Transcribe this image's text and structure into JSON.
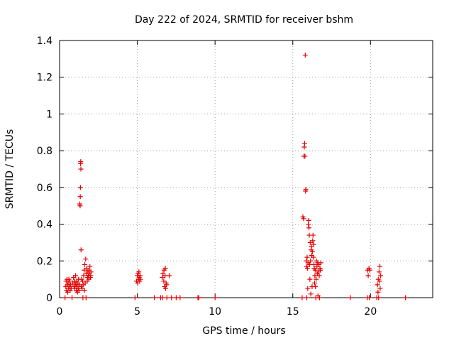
{
  "chart_data": {
    "type": "scatter",
    "title": "Day 222 of 2024, SRMTID for receiver bshm",
    "xlabel": "GPS time / hours",
    "ylabel": "SRMTID / TECUs",
    "xlim": [
      0,
      24
    ],
    "ylim": [
      0,
      1.4
    ],
    "x_ticks": [
      0,
      5,
      10,
      15,
      20
    ],
    "x_tick_labels": [
      "0",
      "5",
      "10",
      "15",
      "20"
    ],
    "y_ticks": [
      0,
      0.2,
      0.4,
      0.6,
      0.8,
      1.0,
      1.2,
      1.4
    ],
    "y_tick_labels": [
      "0",
      "0.2",
      "0.4",
      "0.6",
      "0.8",
      "1",
      "1.2",
      "1.4"
    ],
    "grid": true,
    "marker": "plus",
    "marker_color": "#e60000",
    "series": [
      {
        "name": "SRMTID",
        "points": [
          [
            0.35,
            0.0
          ],
          [
            0.4,
            0.06
          ],
          [
            0.42,
            0.09
          ],
          [
            0.45,
            0.04
          ],
          [
            0.48,
            0.1
          ],
          [
            0.5,
            0.07
          ],
          [
            0.52,
            0.03
          ],
          [
            0.55,
            0.08
          ],
          [
            0.58,
            0.05
          ],
          [
            0.6,
            0.1
          ],
          [
            0.62,
            0.06
          ],
          [
            0.65,
            0.09
          ],
          [
            0.68,
            0.04
          ],
          [
            0.7,
            0.07
          ],
          [
            0.75,
            0.05
          ],
          [
            0.8,
            0.0
          ],
          [
            0.85,
            0.08
          ],
          [
            0.9,
            0.11
          ],
          [
            0.93,
            0.06
          ],
          [
            0.95,
            0.09
          ],
          [
            0.98,
            0.05
          ],
          [
            1.0,
            0.08
          ],
          [
            1.03,
            0.12
          ],
          [
            1.05,
            0.07
          ],
          [
            1.08,
            0.04
          ],
          [
            1.1,
            0.09
          ],
          [
            1.12,
            0.06
          ],
          [
            1.15,
            0.03
          ],
          [
            1.18,
            0.08
          ],
          [
            1.2,
            0.05
          ],
          [
            1.22,
            0.1
          ],
          [
            1.25,
            0.04
          ],
          [
            1.28,
            0.07
          ],
          [
            1.3,
            0.51
          ],
          [
            1.32,
            0.5
          ],
          [
            1.33,
            0.55
          ],
          [
            1.34,
            0.6
          ],
          [
            1.35,
            0.73
          ],
          [
            1.36,
            0.74
          ],
          [
            1.37,
            0.7
          ],
          [
            1.38,
            0.26
          ],
          [
            1.4,
            0.06
          ],
          [
            1.42,
            0.1
          ],
          [
            1.45,
            0.05
          ],
          [
            1.48,
            0.09
          ],
          [
            1.5,
            0.0
          ],
          [
            1.52,
            0.07
          ],
          [
            1.55,
            0.12
          ],
          [
            1.58,
            0.15
          ],
          [
            1.6,
            0.04
          ],
          [
            1.62,
            0.18
          ],
          [
            1.65,
            0.08
          ],
          [
            1.68,
            0.21
          ],
          [
            1.7,
            0.0
          ],
          [
            1.72,
            0.13
          ],
          [
            1.75,
            0.16
          ],
          [
            1.78,
            0.09
          ],
          [
            1.8,
            0.11
          ],
          [
            1.82,
            0.14
          ],
          [
            1.85,
            0.12
          ],
          [
            1.88,
            0.1
          ],
          [
            1.9,
            0.15
          ],
          [
            1.92,
            0.13
          ],
          [
            1.95,
            0.17
          ],
          [
            1.98,
            0.11
          ],
          [
            2.0,
            0.12
          ],
          [
            2.02,
            0.14
          ],
          [
            4.85,
            0.0
          ],
          [
            4.95,
            0.09
          ],
          [
            5.0,
            0.12
          ],
          [
            5.02,
            0.08
          ],
          [
            5.05,
            0.13
          ],
          [
            5.08,
            0.1
          ],
          [
            5.1,
            0.14
          ],
          [
            5.12,
            0.11
          ],
          [
            5.15,
            0.09
          ],
          [
            5.18,
            0.12
          ],
          [
            5.2,
            0.1
          ],
          [
            6.1,
            0.0
          ],
          [
            6.5,
            0.0
          ],
          [
            6.6,
            0.11
          ],
          [
            6.62,
            0.0
          ],
          [
            6.65,
            0.13
          ],
          [
            6.7,
            0.09
          ],
          [
            6.72,
            0.15
          ],
          [
            6.75,
            0.06
          ],
          [
            6.78,
            0.12
          ],
          [
            6.8,
            0.16
          ],
          [
            6.82,
            0.05
          ],
          [
            6.85,
            0.08
          ],
          [
            6.88,
            0.07
          ],
          [
            6.9,
            0.0
          ],
          [
            7.05,
            0.12
          ],
          [
            7.2,
            0.0
          ],
          [
            7.5,
            0.0
          ],
          [
            7.75,
            0.0
          ],
          [
            8.9,
            0.0
          ],
          [
            8.95,
            0.0
          ],
          [
            10.0,
            0.0
          ],
          [
            15.6,
            0.0
          ],
          [
            15.65,
            0.44
          ],
          [
            15.7,
            0.43
          ],
          [
            15.72,
            0.77
          ],
          [
            15.74,
            0.82
          ],
          [
            15.76,
            0.84
          ],
          [
            15.78,
            0.77
          ],
          [
            15.8,
            1.32
          ],
          [
            15.82,
            0.58
          ],
          [
            15.84,
            0.59
          ],
          [
            15.86,
            0.2
          ],
          [
            15.88,
            0.17
          ],
          [
            15.9,
            0.0
          ],
          [
            15.92,
            0.22
          ],
          [
            15.94,
            0.16
          ],
          [
            15.96,
            0.05
          ],
          [
            15.98,
            0.19
          ],
          [
            16.0,
            0.4
          ],
          [
            16.02,
            0.42
          ],
          [
            16.04,
            0.38
          ],
          [
            16.06,
            0.34
          ],
          [
            16.08,
            0.18
          ],
          [
            16.1,
            0.1
          ],
          [
            16.12,
            0.3
          ],
          [
            16.14,
            0.2
          ],
          [
            16.16,
            0.02
          ],
          [
            16.18,
            0.26
          ],
          [
            16.2,
            0.28
          ],
          [
            16.22,
            0.23
          ],
          [
            16.24,
            0.06
          ],
          [
            16.26,
            0.25
          ],
          [
            16.28,
            0.31
          ],
          [
            16.3,
            0.34
          ],
          [
            16.32,
            0.22
          ],
          [
            16.34,
            0.29
          ],
          [
            16.36,
            0.18
          ],
          [
            16.38,
            0.16
          ],
          [
            16.4,
            0.08
          ],
          [
            16.42,
            0.12
          ],
          [
            16.44,
            0.15
          ],
          [
            16.46,
            0.06
          ],
          [
            16.48,
            0.0
          ],
          [
            16.5,
            0.1
          ],
          [
            16.52,
            0.2
          ],
          [
            16.55,
            0.17
          ],
          [
            16.58,
            0.13
          ],
          [
            16.6,
            0.19
          ],
          [
            16.62,
            0.01
          ],
          [
            16.65,
            0.14
          ],
          [
            16.68,
            0.18
          ],
          [
            16.7,
            0.12
          ],
          [
            16.72,
            0.0
          ],
          [
            16.75,
            0.16
          ],
          [
            16.78,
            0.15
          ],
          [
            16.8,
            0.19
          ],
          [
            18.7,
            0.0
          ],
          [
            19.8,
            0.0
          ],
          [
            19.82,
            0.15
          ],
          [
            19.85,
            0.12
          ],
          [
            19.9,
            0.16
          ],
          [
            19.92,
            0.0
          ],
          [
            19.95,
            0.15
          ],
          [
            20.4,
            0.0
          ],
          [
            20.45,
            0.07
          ],
          [
            20.48,
            0.03
          ],
          [
            20.5,
            0.1
          ],
          [
            20.52,
            0.0
          ],
          [
            20.55,
            0.14
          ],
          [
            20.58,
            0.09
          ],
          [
            20.6,
            0.17
          ],
          [
            20.62,
            0.05
          ],
          [
            20.65,
            0.12
          ],
          [
            22.25,
            0.0
          ]
        ]
      }
    ]
  }
}
